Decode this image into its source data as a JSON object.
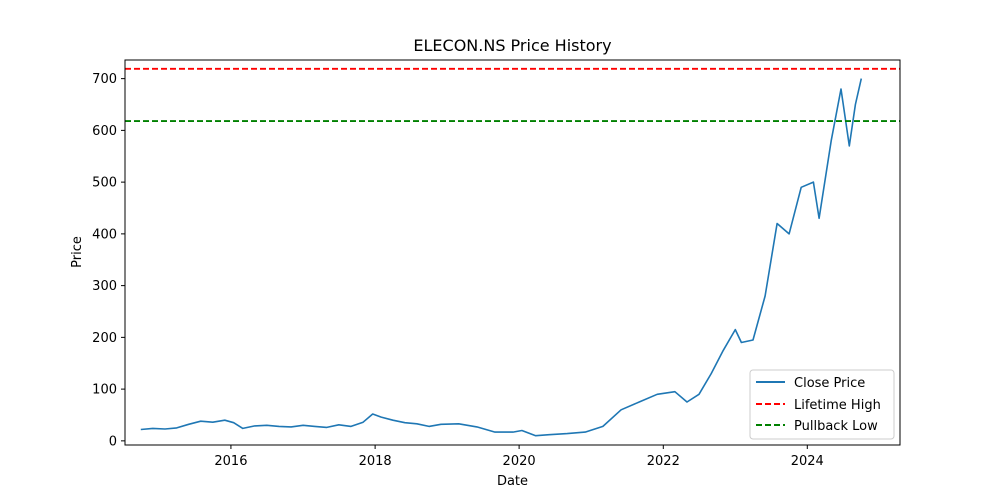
{
  "chart_data": {
    "type": "line",
    "title": "ELECON.NS Price History",
    "xlabel": "Date",
    "ylabel": "Price",
    "xlim": [
      "2014-07-13",
      "2025-04-15"
    ],
    "ylim": [
      -8,
      736
    ],
    "x_ticks": [
      {
        "date": "2016-01-01",
        "label": "2016"
      },
      {
        "date": "2018-01-01",
        "label": "2018"
      },
      {
        "date": "2020-01-01",
        "label": "2020"
      },
      {
        "date": "2022-01-01",
        "label": "2022"
      },
      {
        "date": "2024-01-01",
        "label": "2024"
      }
    ],
    "y_ticks": [
      0,
      100,
      200,
      300,
      400,
      500,
      600,
      700
    ],
    "grid": false,
    "legend_position": "lower-right",
    "series": [
      {
        "name": "Close Price",
        "color": "#1f77b4",
        "style": "solid",
        "points": [
          [
            "2014-10-01",
            22
          ],
          [
            "2014-12-01",
            24
          ],
          [
            "2015-02-01",
            23
          ],
          [
            "2015-04-01",
            25
          ],
          [
            "2015-06-01",
            32
          ],
          [
            "2015-08-01",
            38
          ],
          [
            "2015-10-01",
            36
          ],
          [
            "2015-12-01",
            40
          ],
          [
            "2016-01-15",
            35
          ],
          [
            "2016-03-01",
            24
          ],
          [
            "2016-05-01",
            29
          ],
          [
            "2016-07-01",
            30
          ],
          [
            "2016-09-01",
            28
          ],
          [
            "2016-11-01",
            27
          ],
          [
            "2017-01-01",
            30
          ],
          [
            "2017-03-01",
            28
          ],
          [
            "2017-05-01",
            26
          ],
          [
            "2017-07-01",
            31
          ],
          [
            "2017-09-01",
            28
          ],
          [
            "2017-11-01",
            36
          ],
          [
            "2017-12-20",
            52
          ],
          [
            "2018-02-01",
            46
          ],
          [
            "2018-04-01",
            40
          ],
          [
            "2018-06-01",
            35
          ],
          [
            "2018-08-01",
            33
          ],
          [
            "2018-10-01",
            28
          ],
          [
            "2018-12-01",
            32
          ],
          [
            "2019-03-01",
            33
          ],
          [
            "2019-06-01",
            27
          ],
          [
            "2019-09-01",
            17
          ],
          [
            "2019-12-01",
            17
          ],
          [
            "2020-01-15",
            20
          ],
          [
            "2020-03-25",
            10
          ],
          [
            "2020-06-01",
            12
          ],
          [
            "2020-09-01",
            14
          ],
          [
            "2020-12-01",
            17
          ],
          [
            "2021-03-01",
            28
          ],
          [
            "2021-06-01",
            60
          ],
          [
            "2021-09-01",
            75
          ],
          [
            "2021-12-01",
            90
          ],
          [
            "2022-03-01",
            95
          ],
          [
            "2022-05-01",
            75
          ],
          [
            "2022-07-01",
            90
          ],
          [
            "2022-09-01",
            130
          ],
          [
            "2022-11-01",
            175
          ],
          [
            "2023-01-01",
            215
          ],
          [
            "2023-02-01",
            190
          ],
          [
            "2023-04-01",
            195
          ],
          [
            "2023-06-01",
            280
          ],
          [
            "2023-08-01",
            420
          ],
          [
            "2023-10-01",
            400
          ],
          [
            "2023-12-01",
            490
          ],
          [
            "2024-02-01",
            500
          ],
          [
            "2024-03-01",
            430
          ],
          [
            "2024-05-01",
            580
          ],
          [
            "2024-06-20",
            680
          ],
          [
            "2024-08-01",
            570
          ],
          [
            "2024-09-01",
            650
          ],
          [
            "2024-10-01",
            700
          ]
        ]
      },
      {
        "name": "Lifetime High",
        "color": "#ff0000",
        "style": "dashed",
        "hline": 719
      },
      {
        "name": "Pullback Low",
        "color": "#008000",
        "style": "dashed",
        "hline": 618
      }
    ]
  }
}
